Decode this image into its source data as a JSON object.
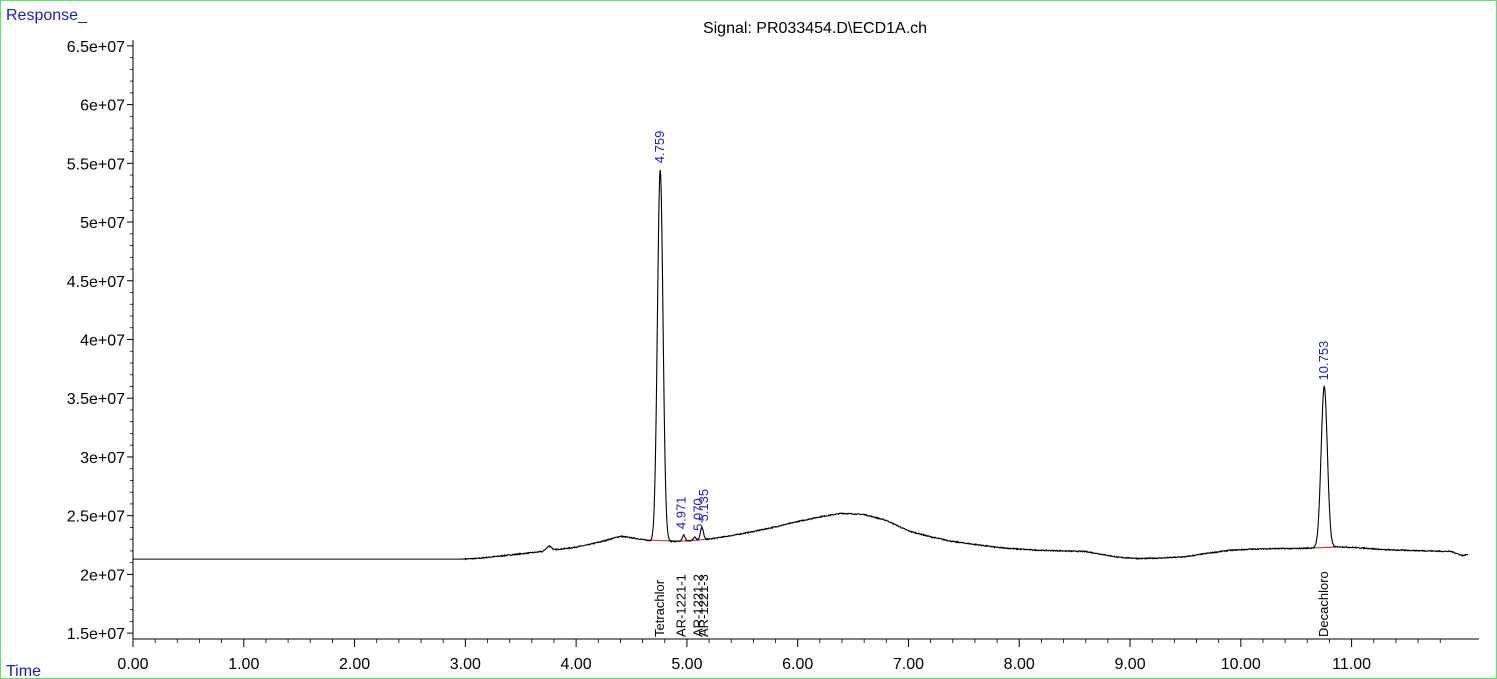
{
  "chart_data": {
    "type": "line",
    "title": "Signal: PR033454.D\\ECD1A.ch",
    "ylabel": "Response_",
    "xlabel": "Time",
    "xlim": [
      0,
      12.15
    ],
    "ylim": [
      14500000,
      65500000
    ],
    "x_ticks": [
      0,
      1,
      2,
      3,
      4,
      5,
      6,
      7,
      8,
      9,
      10,
      11
    ],
    "x_tick_labels": [
      "0.00",
      "1.00",
      "2.00",
      "3.00",
      "4.00",
      "5.00",
      "6.00",
      "7.00",
      "8.00",
      "9.00",
      "10.00",
      "11.00"
    ],
    "y_ticks": [
      15000000,
      20000000,
      25000000,
      30000000,
      35000000,
      40000000,
      45000000,
      50000000,
      55000000,
      60000000,
      65000000
    ],
    "y_tick_labels": [
      "1.5e+07",
      "2e+07",
      "2.5e+07",
      "3e+07",
      "3.5e+07",
      "4e+07",
      "4.5e+07",
      "5e+07",
      "5.5e+07",
      "6e+07",
      "6.5e+07"
    ],
    "baseline": [
      [
        0.0,
        21300000
      ],
      [
        2.95,
        21300000
      ],
      [
        3.1,
        21350000
      ],
      [
        3.3,
        21550000
      ],
      [
        3.5,
        21750000
      ],
      [
        3.7,
        21950000
      ],
      [
        3.76,
        22450000
      ],
      [
        3.8,
        22100000
      ],
      [
        3.95,
        22250000
      ],
      [
        4.1,
        22500000
      ],
      [
        4.25,
        22850000
      ],
      [
        4.4,
        23250000
      ],
      [
        4.55,
        23050000
      ],
      [
        4.7,
        22800000
      ],
      [
        4.85,
        22800000
      ],
      [
        5.0,
        22850000
      ],
      [
        5.2,
        23000000
      ],
      [
        5.4,
        23300000
      ],
      [
        5.6,
        23650000
      ],
      [
        5.8,
        24050000
      ],
      [
        6.0,
        24500000
      ],
      [
        6.2,
        24900000
      ],
      [
        6.4,
        25200000
      ],
      [
        6.6,
        25100000
      ],
      [
        6.8,
        24600000
      ],
      [
        7.0,
        23700000
      ],
      [
        7.2,
        23200000
      ],
      [
        7.4,
        22800000
      ],
      [
        7.6,
        22550000
      ],
      [
        7.8,
        22300000
      ],
      [
        8.0,
        22150000
      ],
      [
        8.2,
        22050000
      ],
      [
        8.4,
        22000000
      ],
      [
        8.6,
        21950000
      ],
      [
        8.75,
        21700000
      ],
      [
        8.9,
        21450000
      ],
      [
        9.1,
        21350000
      ],
      [
        9.3,
        21400000
      ],
      [
        9.5,
        21500000
      ],
      [
        9.7,
        21800000
      ],
      [
        9.9,
        22050000
      ],
      [
        10.1,
        22150000
      ],
      [
        10.3,
        22200000
      ],
      [
        10.5,
        22200000
      ],
      [
        10.65,
        22250000
      ],
      [
        10.9,
        22350000
      ],
      [
        11.1,
        22250000
      ],
      [
        11.3,
        22100000
      ],
      [
        11.5,
        22050000
      ],
      [
        11.7,
        22000000
      ],
      [
        11.9,
        21950000
      ],
      [
        12.0,
        21600000
      ],
      [
        12.05,
        21700000
      ]
    ],
    "peaks": [
      {
        "rt": 4.759,
        "label": "4.759",
        "height": 54500000,
        "width": 0.025,
        "compound": "Tetrachlor"
      },
      {
        "rt": 4.971,
        "label": "4.971",
        "height": 23350000,
        "width": 0.012,
        "compound": "AR-1221-1"
      },
      {
        "rt": 5.07,
        "label": "5.070",
        "height": 23200000,
        "width": 0.012,
        "compound": "AR-1221-2"
      },
      {
        "rt": 5.135,
        "label": "5.135",
        "height": 24000000,
        "width": 0.014,
        "compound": "AR-1221-3"
      },
      {
        "rt": 10.753,
        "label": "10.753",
        "height": 36000000,
        "width": 0.028,
        "compound": "Decachloro"
      }
    ],
    "colors": {
      "trace": "#000000",
      "integration": "#e03030",
      "peak_label": "#1a1acc",
      "frame": "#66dd66"
    }
  }
}
